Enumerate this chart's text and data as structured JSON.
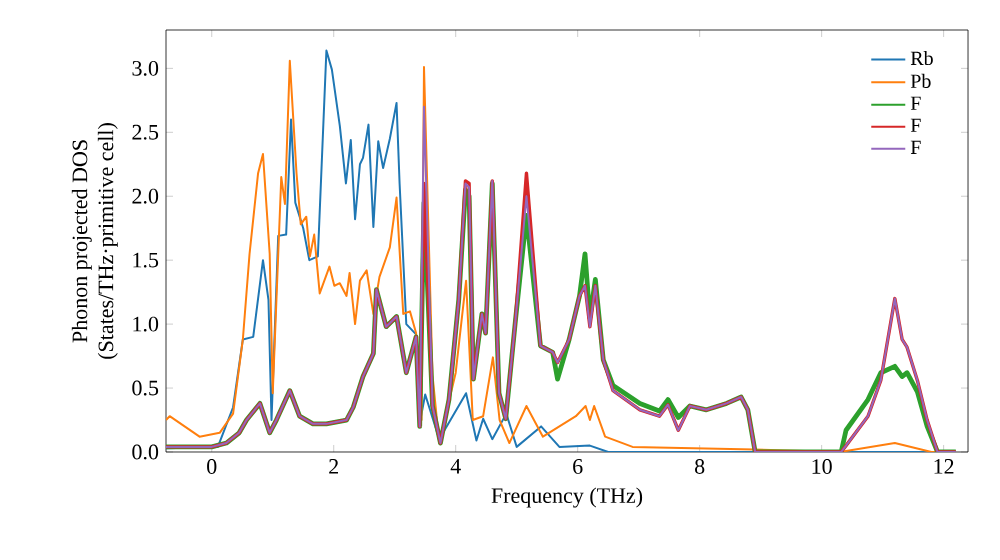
{
  "chart_data": {
    "type": "line",
    "xlabel": "Frequency (THz)",
    "ylabel": "Phonon projected DOS\n(States/THz·primitive cell)",
    "xlim": [
      -0.75,
      12.4
    ],
    "ylim": [
      0,
      3.3
    ],
    "xticks": [
      0,
      2,
      4,
      6,
      8,
      10,
      12
    ],
    "yticks": [
      {
        "value": 0,
        "label": "0.0"
      },
      {
        "value": 0.5,
        "label": "0.5"
      },
      {
        "value": 1,
        "label": "1.0"
      },
      {
        "value": 1.5,
        "label": "1.5"
      },
      {
        "value": 2,
        "label": "2.0"
      },
      {
        "value": 2.5,
        "label": "2.5"
      },
      {
        "value": 3,
        "label": "3.0"
      }
    ],
    "legend": "top right",
    "grid": false,
    "series": [
      {
        "name": "Rb",
        "color": "#1f77b4",
        "x": [
          -0.75,
          0.1,
          0.35,
          0.51,
          0.68,
          0.84,
          0.93,
          0.98,
          1.09,
          1.22,
          1.3,
          1.37,
          1.5,
          1.6,
          1.74,
          1.88,
          1.97,
          2.1,
          2.2,
          2.28,
          2.35,
          2.43,
          2.48,
          2.57,
          2.65,
          2.73,
          2.81,
          2.92,
          3.03,
          3.08,
          3.19,
          3.35,
          3.4,
          3.5,
          3.73,
          4.17,
          4.34,
          4.45,
          4.6,
          4.83,
          5.0,
          5.4,
          5.7,
          6.2,
          6.5,
          12.2
        ],
        "values": [
          0.03,
          0.04,
          0.35,
          0.88,
          0.9,
          1.5,
          1.19,
          0.25,
          1.69,
          1.7,
          2.6,
          1.95,
          1.75,
          1.5,
          1.53,
          3.14,
          2.99,
          2.55,
          2.1,
          2.44,
          1.82,
          2.25,
          2.3,
          2.56,
          1.76,
          2.43,
          2.22,
          2.45,
          2.73,
          2.1,
          1.0,
          0.92,
          0.2,
          0.45,
          0.1,
          0.46,
          0.09,
          0.26,
          0.1,
          0.3,
          0.04,
          0.2,
          0.04,
          0.05,
          0.0,
          0.0
        ]
      },
      {
        "name": "Pb",
        "color": "#ff7f0e",
        "x": [
          -0.75,
          -0.69,
          -0.2,
          0.13,
          0.35,
          0.51,
          0.62,
          0.76,
          0.84,
          0.95,
          1.0,
          1.14,
          1.2,
          1.28,
          1.39,
          1.46,
          1.55,
          1.61,
          1.68,
          1.77,
          1.93,
          2.01,
          2.1,
          2.21,
          2.26,
          2.35,
          2.43,
          2.54,
          2.65,
          2.75,
          2.92,
          3.03,
          3.14,
          3.25,
          3.35,
          3.44,
          3.48,
          3.62,
          3.73,
          4.0,
          4.17,
          4.28,
          4.45,
          4.61,
          4.72,
          4.88,
          5.16,
          5.43,
          5.97,
          6.13,
          6.2,
          6.27,
          6.45,
          6.9,
          8.9,
          10.3,
          11.2,
          11.8,
          12.2
        ],
        "values": [
          0.25,
          0.28,
          0.12,
          0.15,
          0.3,
          0.88,
          1.55,
          2.18,
          2.33,
          1.55,
          0.46,
          2.15,
          1.94,
          3.06,
          2.18,
          1.78,
          1.84,
          1.53,
          1.7,
          1.24,
          1.45,
          1.3,
          1.32,
          1.22,
          1.4,
          1.0,
          1.34,
          1.42,
          1.08,
          1.37,
          1.6,
          1.99,
          1.08,
          1.1,
          0.93,
          0.25,
          3.01,
          0.6,
          0.07,
          0.62,
          1.34,
          0.25,
          0.28,
          0.74,
          0.25,
          0.07,
          0.36,
          0.12,
          0.28,
          0.36,
          0.25,
          0.36,
          0.12,
          0.04,
          0.02,
          0.0,
          0.07,
          0.0,
          0.0
        ]
      },
      {
        "name": "F",
        "color": "#2ca02c",
        "x": [
          -0.75,
          0.0,
          0.24,
          0.45,
          0.57,
          0.79,
          0.95,
          1.06,
          1.28,
          1.44,
          1.66,
          1.88,
          2.21,
          2.32,
          2.48,
          2.65,
          2.7,
          2.86,
          3.03,
          3.19,
          3.35,
          3.41,
          3.48,
          3.62,
          3.75,
          3.89,
          4.05,
          4.16,
          4.22,
          4.29,
          4.43,
          4.49,
          4.6,
          4.71,
          4.82,
          4.98,
          5.16,
          5.39,
          5.59,
          5.67,
          5.86,
          6.03,
          6.12,
          6.2,
          6.29,
          6.42,
          6.58,
          7.02,
          7.34,
          7.48,
          7.65,
          7.84,
          8.11,
          8.44,
          8.68,
          8.79,
          8.91,
          10.32,
          10.4,
          10.76,
          10.97,
          11.2,
          11.32,
          11.4,
          11.57,
          11.73,
          11.9,
          12.2
        ],
        "values": [
          0.04,
          0.04,
          0.07,
          0.15,
          0.25,
          0.38,
          0.15,
          0.25,
          0.48,
          0.28,
          0.22,
          0.22,
          0.25,
          0.35,
          0.59,
          0.77,
          1.27,
          0.98,
          1.06,
          0.62,
          0.9,
          0.2,
          1.95,
          0.36,
          0.07,
          0.41,
          1.19,
          2.05,
          2.0,
          0.57,
          1.08,
          0.93,
          2.1,
          0.46,
          0.26,
          1.03,
          1.85,
          0.83,
          0.78,
          0.57,
          0.88,
          1.22,
          1.55,
          1.05,
          1.35,
          0.72,
          0.52,
          0.38,
          0.32,
          0.41,
          0.27,
          0.36,
          0.33,
          0.38,
          0.43,
          0.33,
          0.0,
          0.0,
          0.17,
          0.41,
          0.62,
          0.67,
          0.59,
          0.62,
          0.47,
          0.2,
          0.0,
          0.0
        ]
      },
      {
        "name": "F",
        "color": "#d62728",
        "x": [
          -0.75,
          0.0,
          0.24,
          0.45,
          0.57,
          0.79,
          0.95,
          1.06,
          1.28,
          1.44,
          1.66,
          1.88,
          2.21,
          2.32,
          2.48,
          2.65,
          2.7,
          2.86,
          3.03,
          3.19,
          3.35,
          3.41,
          3.48,
          3.62,
          3.75,
          3.89,
          4.05,
          4.16,
          4.22,
          4.29,
          4.43,
          4.49,
          4.6,
          4.71,
          4.82,
          4.98,
          5.16,
          5.39,
          5.59,
          5.67,
          5.86,
          6.03,
          6.12,
          6.2,
          6.29,
          6.42,
          6.58,
          7.02,
          7.34,
          7.48,
          7.65,
          7.84,
          8.11,
          8.44,
          8.68,
          8.79,
          8.91,
          10.32,
          10.4,
          10.76,
          10.97,
          11.2,
          11.32,
          11.4,
          11.57,
          11.73,
          11.9,
          12.2
        ],
        "values": [
          0.04,
          0.04,
          0.07,
          0.15,
          0.25,
          0.38,
          0.15,
          0.25,
          0.48,
          0.28,
          0.22,
          0.22,
          0.25,
          0.35,
          0.59,
          0.77,
          1.27,
          0.98,
          1.06,
          0.62,
          0.9,
          0.2,
          2.1,
          0.36,
          0.07,
          0.41,
          1.19,
          2.12,
          2.1,
          0.57,
          1.08,
          0.93,
          2.12,
          0.46,
          0.26,
          1.03,
          2.18,
          0.83,
          0.78,
          0.7,
          0.88,
          1.22,
          1.3,
          0.98,
          1.3,
          0.72,
          0.48,
          0.33,
          0.28,
          0.37,
          0.17,
          0.36,
          0.33,
          0.38,
          0.43,
          0.33,
          0.0,
          0.0,
          0.05,
          0.28,
          0.56,
          1.2,
          0.88,
          0.82,
          0.56,
          0.25,
          0.0,
          0.0
        ]
      },
      {
        "name": "F",
        "color": "#9467bd",
        "x": [
          -0.75,
          0.0,
          0.24,
          0.45,
          0.57,
          0.79,
          0.95,
          1.06,
          1.28,
          1.44,
          1.66,
          1.88,
          2.21,
          2.32,
          2.48,
          2.65,
          2.7,
          2.86,
          3.03,
          3.19,
          3.35,
          3.41,
          3.48,
          3.62,
          3.75,
          3.89,
          4.05,
          4.16,
          4.22,
          4.29,
          4.43,
          4.49,
          4.6,
          4.71,
          4.82,
          4.98,
          5.16,
          5.39,
          5.59,
          5.67,
          5.86,
          6.03,
          6.12,
          6.2,
          6.29,
          6.42,
          6.58,
          7.02,
          7.34,
          7.48,
          7.65,
          7.84,
          8.11,
          8.44,
          8.68,
          8.79,
          8.91,
          10.32,
          10.4,
          10.76,
          10.97,
          11.2,
          11.32,
          11.4,
          11.57,
          11.73,
          11.9,
          12.2
        ],
        "values": [
          0.04,
          0.04,
          0.07,
          0.15,
          0.25,
          0.38,
          0.15,
          0.25,
          0.48,
          0.28,
          0.22,
          0.22,
          0.25,
          0.35,
          0.59,
          0.77,
          1.27,
          0.98,
          1.06,
          0.62,
          0.9,
          0.2,
          2.7,
          0.36,
          0.07,
          0.41,
          1.19,
          2.1,
          2.07,
          0.57,
          1.08,
          0.93,
          2.12,
          0.46,
          0.26,
          1.03,
          2.0,
          0.83,
          0.78,
          0.7,
          0.88,
          1.22,
          1.3,
          0.98,
          1.3,
          0.72,
          0.48,
          0.33,
          0.28,
          0.37,
          0.17,
          0.36,
          0.33,
          0.38,
          0.43,
          0.33,
          0.0,
          0.0,
          0.05,
          0.28,
          0.56,
          1.2,
          0.88,
          0.82,
          0.56,
          0.25,
          0.0,
          0.0
        ]
      }
    ]
  }
}
